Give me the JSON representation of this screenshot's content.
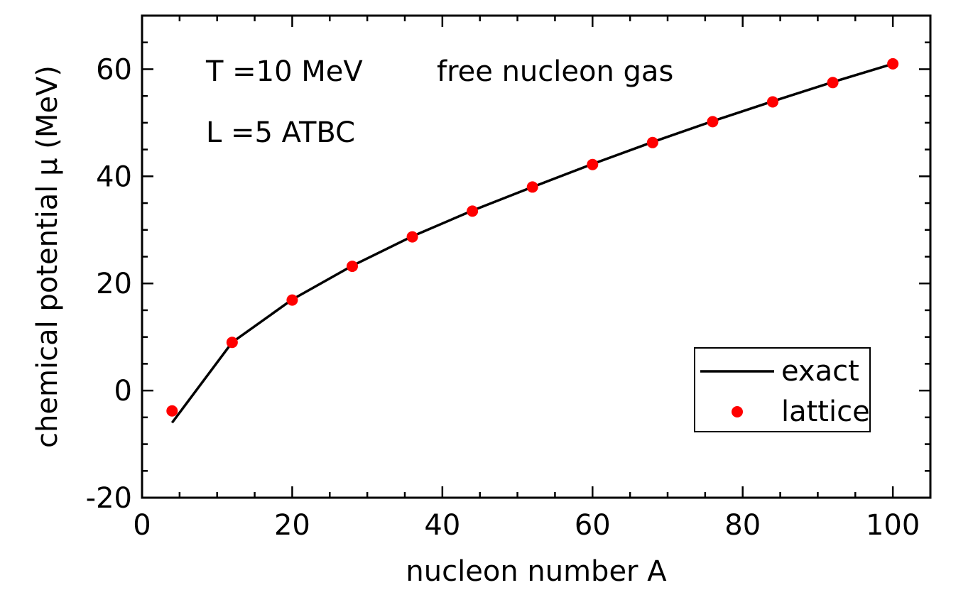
{
  "chart_data": {
    "type": "line",
    "xlabel": "nucleon number A",
    "ylabel": "chemical potential μ (MeV)",
    "xlim": [
      0,
      105
    ],
    "ylim": [
      -20,
      70
    ],
    "x_ticks": [
      0,
      20,
      40,
      60,
      80,
      100
    ],
    "y_ticks": [
      -20,
      0,
      20,
      40,
      60
    ],
    "x_tick_labels": [
      "0",
      "20",
      "40",
      "60",
      "80",
      "100"
    ],
    "y_tick_labels": [
      "-20",
      "0",
      "20",
      "40",
      "60"
    ],
    "x_minor_step": 5,
    "y_minor_step": 5,
    "grid": false,
    "legend_position": "bottom-right",
    "annotations": {
      "temperature": "T =10 MeV",
      "system": "free nucleon gas",
      "lattice": "L =5  ATBC"
    },
    "series": [
      {
        "name": "exact",
        "style": "line",
        "color": "#000000",
        "x": [
          4,
          12,
          20,
          28,
          36,
          44,
          52,
          60,
          68,
          76,
          84,
          92,
          100
        ],
        "y": [
          -6,
          9,
          17,
          23.3,
          28.8,
          33.6,
          38,
          42.3,
          46.4,
          50.3,
          54,
          57.6,
          61
        ]
      },
      {
        "name": "lattice",
        "style": "markers",
        "color": "#ff0000",
        "x": [
          4,
          12,
          20,
          28,
          36,
          44,
          52,
          60,
          68,
          76,
          84,
          92,
          100
        ],
        "y": [
          -3.8,
          9,
          16.9,
          23.2,
          28.7,
          33.5,
          38,
          42.2,
          46.3,
          50.2,
          53.9,
          57.5,
          61
        ]
      }
    ]
  }
}
